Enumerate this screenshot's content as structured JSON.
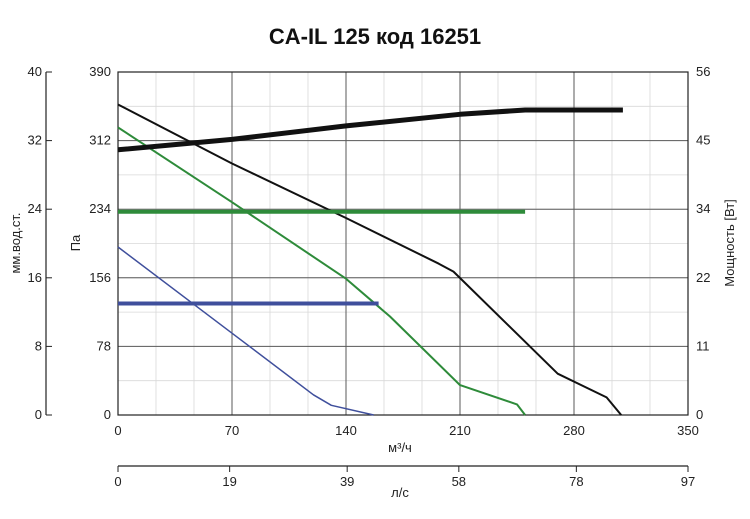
{
  "chart_data": {
    "type": "line",
    "title": "CA-IL 125 код 16251",
    "x_axis": {
      "label": "м³/ч",
      "range": [
        0,
        350
      ],
      "ticks": [
        0,
        70,
        140,
        210,
        280,
        350
      ],
      "tick_labels": [
        "0",
        "70",
        "140",
        "210",
        "280",
        "350"
      ]
    },
    "x2_axis": {
      "label": "л/с",
      "range": [
        0,
        97
      ],
      "ticks": [
        0,
        19,
        39,
        58,
        78,
        97
      ],
      "tick_labels": [
        "0",
        "19",
        "39",
        "58",
        "78",
        "97"
      ]
    },
    "y_axis": {
      "label": "Па",
      "range": [
        0,
        390
      ],
      "ticks": [
        0,
        78,
        156,
        234,
        312,
        390
      ],
      "tick_labels": [
        "0",
        "78",
        "156",
        "234",
        "312",
        "390"
      ]
    },
    "y_axis_outer": {
      "label": "мм.вод.ст.",
      "range": [
        0,
        40
      ],
      "tick_labels": [
        "0",
        "8",
        "16",
        "24",
        "32",
        "40"
      ]
    },
    "y2_axis": {
      "label": "Мощность [Вт]",
      "range": [
        0,
        56
      ],
      "tick_labels": [
        "0",
        "11",
        "22",
        "34",
        "45",
        "56"
      ]
    },
    "grid": true,
    "series": [
      {
        "axis": "y",
        "color": "#111111",
        "width": 2,
        "points": [
          [
            0,
            353
          ],
          [
            70,
            286
          ],
          [
            140,
            224
          ],
          [
            197,
            172
          ],
          [
            206,
            163
          ],
          [
            270,
            47
          ],
          [
            300,
            20
          ],
          [
            309,
            0
          ]
        ]
      },
      {
        "axis": "y",
        "color": "#2e8b3a",
        "width": 2,
        "points": [
          [
            0,
            327
          ],
          [
            70,
            242
          ],
          [
            140,
            155
          ],
          [
            167,
            112
          ],
          [
            210,
            34
          ],
          [
            245,
            12
          ],
          [
            250,
            0
          ]
        ]
      },
      {
        "axis": "y",
        "color": "#3f4f9c",
        "width": 1.5,
        "points": [
          [
            0,
            191
          ],
          [
            70,
            93
          ],
          [
            120,
            23
          ],
          [
            131,
            11
          ],
          [
            157,
            0
          ]
        ]
      },
      {
        "axis": "y2",
        "color": "#111111",
        "width": 5,
        "points": [
          [
            0,
            43.3
          ],
          [
            70,
            45
          ],
          [
            140,
            47.2
          ],
          [
            210,
            49.1
          ],
          [
            250,
            49.8
          ],
          [
            310,
            49.8
          ]
        ]
      },
      {
        "axis": "y2",
        "color": "#2e8b3a",
        "width": 4,
        "points": [
          [
            0,
            33.2
          ],
          [
            250,
            33.2
          ]
        ]
      },
      {
        "axis": "y2",
        "color": "#3f4f9c",
        "width": 4,
        "points": [
          [
            0,
            18.2
          ],
          [
            160,
            18.2
          ]
        ]
      }
    ]
  }
}
